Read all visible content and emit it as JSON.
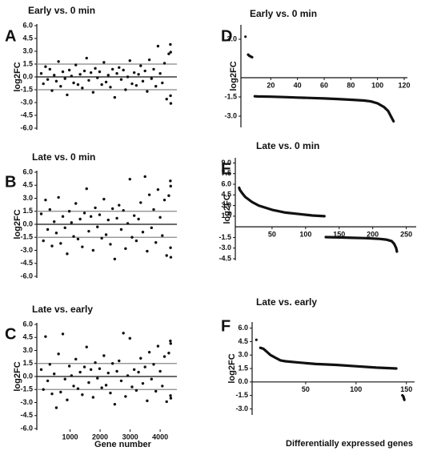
{
  "chart_data": [
    {
      "type": "scatter",
      "panel": "A",
      "title": "Early vs. 0 min",
      "ylabel": "log2FC",
      "x": [
        40,
        112,
        184,
        256,
        328,
        400,
        472,
        544,
        616,
        688,
        760,
        832,
        904,
        976,
        1048,
        1120,
        1192,
        1264,
        1336,
        1408,
        1480,
        1552,
        1624,
        1696,
        1768,
        1840,
        1912,
        1984,
        2056,
        2128,
        2200,
        2272,
        2344,
        2416,
        2488,
        2560,
        2632,
        2704,
        2776,
        2848,
        2920,
        2992,
        3064,
        3136,
        3208,
        3280,
        3352,
        3424,
        3496,
        3568,
        3640,
        3712,
        3784,
        3856,
        3928,
        4000,
        4072,
        4144,
        4216,
        4288,
        4340,
        4345,
        4350,
        4355
      ],
      "values": [
        0.4,
        -0.8,
        1.2,
        -0.3,
        0.9,
        -1.6,
        0.2,
        -0.5,
        1.8,
        -1.1,
        0.6,
        -0.2,
        -2.1,
        0.8,
        0.1,
        -0.7,
        1.4,
        -0.9,
        0.3,
        -1.3,
        0.7,
        2.2,
        -0.4,
        0.5,
        -1.8,
        1.0,
        -0.1,
        0.6,
        -0.9,
        1.7,
        -0.6,
        0.2,
        -1.2,
        0.9,
        -2.4,
        0.4,
        1.1,
        -0.3,
        0.8,
        -1.5,
        0.0,
        1.9,
        -0.8,
        0.5,
        -1.0,
        0.3,
        1.3,
        -0.5,
        0.7,
        -1.7,
        2.0,
        -0.2,
        0.9,
        -1.1,
        3.6,
        0.4,
        -0.7,
        1.6,
        -2.6,
        2.7,
        3.8,
        -2.2,
        2.9,
        -3.1
      ],
      "color": "#111111",
      "xlim": [
        0,
        4450
      ],
      "ylim": [
        -6,
        6
      ],
      "reference_lines": [
        1.5,
        -1.5
      ],
      "yticks": [
        {
          "value": 6,
          "label": "6.0"
        },
        {
          "value": 4.5,
          "label": "4.5"
        },
        {
          "value": 3,
          "label": "3.0"
        },
        {
          "value": 1.5,
          "label": "1.5"
        },
        {
          "value": 0,
          "label": "0.0"
        },
        {
          "value": -1.5,
          "label": "-1.5"
        },
        {
          "value": -3,
          "label": "-3.0"
        },
        {
          "value": -4.5,
          "label": "-4.5"
        },
        {
          "value": -6,
          "label": "-6.0"
        }
      ]
    },
    {
      "type": "scatter",
      "panel": "B",
      "title": "Late vs. 0 min",
      "ylabel": "log2FC",
      "x": [
        40,
        112,
        184,
        256,
        328,
        400,
        472,
        544,
        616,
        688,
        760,
        832,
        904,
        976,
        1048,
        1120,
        1192,
        1264,
        1336,
        1408,
        1480,
        1552,
        1624,
        1696,
        1768,
        1840,
        1912,
        1984,
        2056,
        2128,
        2200,
        2272,
        2344,
        2416,
        2488,
        2560,
        2632,
        2704,
        2776,
        2848,
        2920,
        2992,
        3064,
        3136,
        3208,
        3280,
        3352,
        3424,
        3496,
        3568,
        3640,
        3712,
        3784,
        3856,
        3928,
        4000,
        4072,
        4144,
        4216,
        4288,
        4340,
        4345,
        4350,
        4355
      ],
      "values": [
        1.2,
        -1.9,
        2.8,
        -0.6,
        1.7,
        -2.5,
        0.3,
        -1.0,
        3.1,
        -2.2,
        0.9,
        -0.4,
        -3.4,
        1.5,
        0.2,
        -1.4,
        2.4,
        -1.7,
        0.6,
        -2.6,
        1.3,
        4.1,
        -0.8,
        0.9,
        -3.0,
        1.9,
        -0.3,
        1.1,
        -1.6,
        2.9,
        -1.2,
        0.5,
        -2.3,
        1.8,
        -4.0,
        0.7,
        2.2,
        -0.6,
        1.6,
        -2.8,
        0.1,
        5.2,
        -1.5,
        1.0,
        -1.9,
        0.6,
        2.5,
        -0.9,
        5.5,
        -3.1,
        3.4,
        -0.4,
        1.7,
        -2.1,
        4.0,
        0.8,
        -1.3,
        2.8,
        -3.6,
        3.3,
        5.0,
        -2.7,
        4.4,
        -3.8
      ],
      "color": "#111111",
      "xlim": [
        0,
        4450
      ],
      "ylim": [
        -6,
        6
      ],
      "reference_lines": [
        1.5,
        -1.5
      ],
      "yticks": [
        {
          "value": 6,
          "label": "6.0"
        },
        {
          "value": 4.5,
          "label": "4.5"
        },
        {
          "value": 3,
          "label": "3.0"
        },
        {
          "value": 1.5,
          "label": "1.5"
        },
        {
          "value": 0,
          "label": "0.0"
        },
        {
          "value": -1.5,
          "label": "-1.5"
        },
        {
          "value": -3,
          "label": "-3.0"
        },
        {
          "value": -4.5,
          "label": "-4.5"
        },
        {
          "value": -6,
          "label": "-6.0"
        }
      ]
    },
    {
      "type": "scatter",
      "panel": "C",
      "title": "Late vs. early",
      "ylabel": "log2FC",
      "xlabel": "Gene number",
      "x": [
        40,
        112,
        184,
        256,
        328,
        400,
        472,
        544,
        616,
        688,
        760,
        832,
        904,
        976,
        1048,
        1120,
        1192,
        1264,
        1336,
        1408,
        1480,
        1552,
        1624,
        1696,
        1768,
        1840,
        1912,
        1984,
        2056,
        2128,
        2200,
        2272,
        2344,
        2416,
        2488,
        2560,
        2632,
        2704,
        2776,
        2848,
        2920,
        2992,
        3064,
        3136,
        3208,
        3280,
        3352,
        3424,
        3496,
        3568,
        3640,
        3712,
        3784,
        3856,
        3928,
        4000,
        4072,
        4144,
        4216,
        4288,
        4340,
        4345,
        4350,
        4355
      ],
      "values": [
        0.8,
        -1.5,
        4.6,
        -0.5,
        1.4,
        -2.0,
        0.3,
        -3.6,
        2.6,
        -1.8,
        4.9,
        -0.3,
        -2.7,
        1.2,
        0.1,
        -1.1,
        2.0,
        -1.4,
        0.5,
        -2.1,
        1.1,
        3.4,
        -0.7,
        0.8,
        -2.4,
        1.6,
        -0.2,
        0.9,
        -1.3,
        2.4,
        -1.0,
        0.4,
        -1.9,
        1.5,
        -3.2,
        0.6,
        1.8,
        -0.5,
        5.0,
        -2.3,
        0.1,
        4.4,
        -1.2,
        0.8,
        -1.6,
        0.5,
        2.1,
        -0.8,
        1.1,
        -2.8,
        2.8,
        -0.3,
        1.4,
        -1.7,
        3.5,
        0.6,
        -1.1,
        2.3,
        -2.9,
        2.7,
        4.1,
        -2.2,
        3.8,
        -2.5
      ],
      "color": "#111111",
      "xlim": [
        0,
        4450
      ],
      "ylim": [
        -6,
        6
      ],
      "reference_lines": [
        1.5,
        -1.5
      ],
      "xticks": [
        1000,
        2000,
        3000,
        4000
      ],
      "yticks": [
        {
          "value": 6,
          "label": "6.0"
        },
        {
          "value": 4.5,
          "label": "4.5"
        },
        {
          "value": 3,
          "label": "3.0"
        },
        {
          "value": 1.5,
          "label": "1.5"
        },
        {
          "value": 0,
          "label": "0.0"
        },
        {
          "value": -1.5,
          "label": "-1.5"
        },
        {
          "value": -3,
          "label": "-3.0"
        },
        {
          "value": -4.5,
          "label": "-4.5"
        },
        {
          "value": -6,
          "label": "-6.0"
        }
      ]
    },
    {
      "type": "line",
      "panel": "D",
      "title": "Early vs. 0 min",
      "ylabel": "log2FC",
      "x": [
        1,
        2,
        3,
        4,
        5,
        6,
        7,
        8,
        10,
        20,
        30,
        40,
        50,
        60,
        70,
        80,
        90,
        95,
        100,
        105,
        108,
        110,
        112
      ],
      "values": [
        3.2,
        null,
        1.8,
        1.7,
        1.65,
        1.6,
        null,
        -1.45,
        -1.46,
        -1.48,
        -1.51,
        -1.55,
        -1.58,
        -1.62,
        -1.66,
        -1.72,
        -1.78,
        -1.85,
        -2.0,
        -2.3,
        -2.6,
        -3.0,
        -3.4
      ],
      "color": "#111111",
      "xlim": [
        0,
        120
      ],
      "ylim": [
        -3.75,
        4
      ],
      "xticks": [
        20,
        40,
        60,
        80,
        100,
        120
      ],
      "yticks": [
        {
          "value": 3,
          "label": "3.0"
        },
        {
          "value": -1.5,
          "label": "-1.5"
        },
        {
          "value": -3,
          "label": "-3.0"
        }
      ]
    },
    {
      "type": "line",
      "panel": "E",
      "title": "Late vs. 0 min",
      "ylabel": "log2FC",
      "x": [
        1,
        2,
        5,
        10,
        20,
        30,
        50,
        70,
        90,
        110,
        128,
        129,
        130,
        150,
        170,
        190,
        210,
        220,
        228,
        232,
        235,
        236
      ],
      "values": [
        5.5,
        5.2,
        4.8,
        4.2,
        3.5,
        3.0,
        2.4,
        2.0,
        1.8,
        1.6,
        1.5,
        null,
        -1.45,
        -1.5,
        -1.55,
        -1.6,
        -1.7,
        -1.8,
        -2.0,
        -2.4,
        -3.0,
        -3.5
      ],
      "color": "#111111",
      "xlim": [
        0,
        260
      ],
      "ylim": [
        -4.5,
        9.5
      ],
      "xticks": [
        50,
        100,
        150,
        200,
        250
      ],
      "yticks": [
        {
          "value": 9,
          "label": "9.0"
        },
        {
          "value": 7.5,
          "label": "7.5"
        },
        {
          "value": 6,
          "label": "6.0"
        },
        {
          "value": 4.5,
          "label": "4.5"
        },
        {
          "value": 3,
          "label": "3.0"
        },
        {
          "value": 1.5,
          "label": "1.5"
        },
        {
          "value": -1.5,
          "label": "-1.5"
        },
        {
          "value": -3,
          "label": "-3.0"
        },
        {
          "value": -4.5,
          "label": "-4.5"
        }
      ]
    },
    {
      "type": "line",
      "panel": "F",
      "title": "Late vs. early",
      "ylabel": "log2FC",
      "x": [
        1,
        3,
        5,
        8,
        10,
        15,
        20,
        25,
        30,
        40,
        60,
        80,
        100,
        120,
        140,
        145,
        146,
        147,
        148
      ],
      "values": [
        4.7,
        null,
        3.8,
        3.7,
        3.5,
        3.0,
        2.7,
        2.4,
        2.3,
        2.2,
        2.0,
        1.9,
        1.75,
        1.6,
        1.5,
        null,
        -1.5,
        -1.6,
        -2.0
      ],
      "color": "#111111",
      "xlim": [
        0,
        155
      ],
      "ylim": [
        -3.5,
        6.5
      ],
      "xticks": [
        50,
        100,
        150
      ],
      "yticks": [
        {
          "value": 6,
          "label": "6.0"
        },
        {
          "value": 4.5,
          "label": "4.5"
        },
        {
          "value": 3,
          "label": "3.0"
        },
        {
          "value": 1.5,
          "label": "1.5"
        },
        {
          "value": 0,
          "label": "0.0"
        },
        {
          "value": -1.5,
          "label": "-1.5"
        },
        {
          "value": -3,
          "label": "-3.0"
        }
      ]
    }
  ],
  "figure_xlabel": "Differentially expressed genes"
}
